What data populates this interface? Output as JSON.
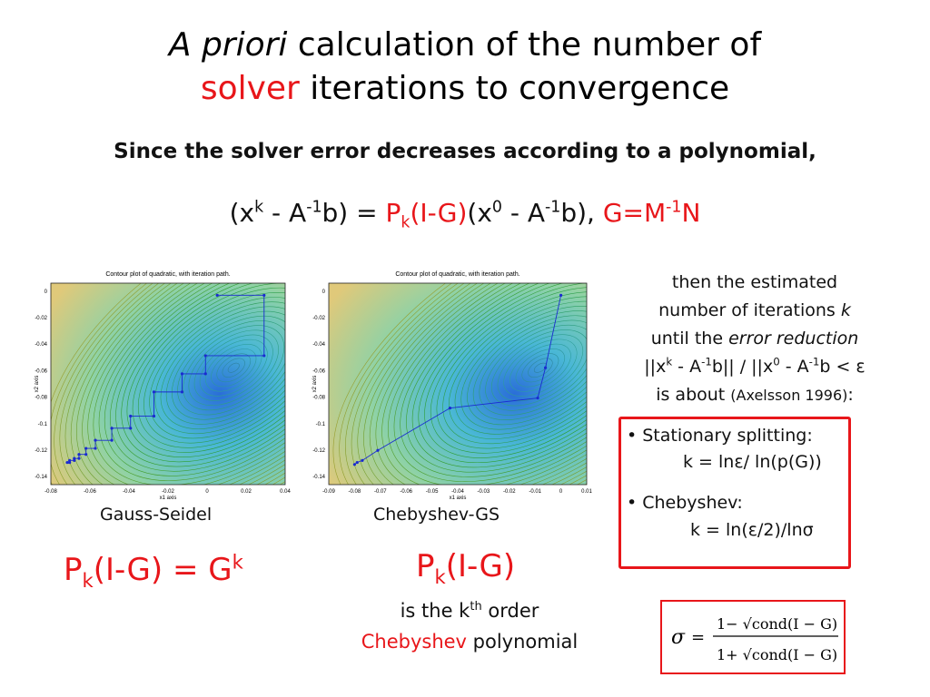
{
  "title": {
    "line1_italic": "A priori",
    "line1_rest": " calculation of the number of",
    "line2_red": "solver",
    "line2_rest": " iterations to convergence"
  },
  "subtitle": "Since the solver error decreases according to a polynomial,",
  "equation": {
    "p1": "(x",
    "p1_sup": "k",
    "p2": " - A",
    "p2_sup": "-1",
    "p3": "b) = ",
    "pk": "P",
    "pk_sub": "k",
    "pk_arg": "(I-G)",
    "p4": "(x",
    "p4_sup": "0",
    "p5": " - A",
    "p5_sup": "-1",
    "p6": "b), ",
    "g_def": "G=M",
    "g_sup": "-1",
    "g_end": "N"
  },
  "plots": [
    {
      "title": "Contour plot of quadratic, with iteration path.",
      "xlabel": "x1 axis",
      "ylabel": "x2 axis",
      "xticks": [
        "-0.08",
        "-0.06",
        "-0.04",
        "-0.02",
        "0",
        "0.02",
        "0.04"
      ],
      "yticks": [
        "0",
        "-0.02",
        "-0.04",
        "-0.06",
        "-0.08",
        "-0.1",
        "-0.12",
        "-0.14"
      ],
      "caption": "Gauss-Seidel"
    },
    {
      "title": "Contour plot of quadratic, with iteration path.",
      "xlabel": "x1 axis",
      "ylabel": "x2 axis",
      "xticks": [
        "-0.09",
        "-0.08",
        "-0.07",
        "-0.06",
        "-0.05",
        "-0.04",
        "-0.03",
        "-0.02",
        "-0.01",
        "0",
        "0.01"
      ],
      "yticks": [
        "0",
        "-0.02",
        "-0.04",
        "-0.06",
        "-0.08",
        "-0.1",
        "-0.12",
        "-0.14"
      ],
      "caption": "Chebyshev-GS"
    }
  ],
  "right_note": {
    "l1": "then the estimated",
    "l2a": "number of iterations ",
    "l2b": "k",
    "l3a": "until the ",
    "l3b": "error reduction",
    "l4a": "||x",
    "l4_sup1": "k",
    "l4b": " - A",
    "l4_sup2": "-1",
    "l4c": "b|| / ||x",
    "l4_sup3": "0",
    "l4d": " - A",
    "l4_sup4": "-1",
    "l4e": "b < ε",
    "l5a": "is about ",
    "l5b": "(Axelsson 1996)",
    "l5c": ":"
  },
  "box": {
    "b1_label": "Stationary splitting:",
    "b1_formula": "k = lnε/ ln(p(G))",
    "b2_label": "Chebyshev:",
    "b2_formula": "k = ln(ε/2)/lnσ"
  },
  "left_formula": {
    "p": "P",
    "sub": "k",
    "rest": "(I-G) = G",
    "sup": "k"
  },
  "middle_formula": {
    "p": "P",
    "sub": "k",
    "rest": "(I-G)",
    "line2a": "is the k",
    "line2_sup": "th",
    "line2b": " order",
    "line3_red": "Chebyshev",
    "line3_rest": " polynomial"
  },
  "sigma": {
    "sigma": "σ",
    "eq": "=",
    "num": "1− √cond(I − G)",
    "den": "1+ √cond(I − G)"
  },
  "colors": {
    "accent_red": "#e8161a",
    "path_blue": "#1a2bd0"
  }
}
